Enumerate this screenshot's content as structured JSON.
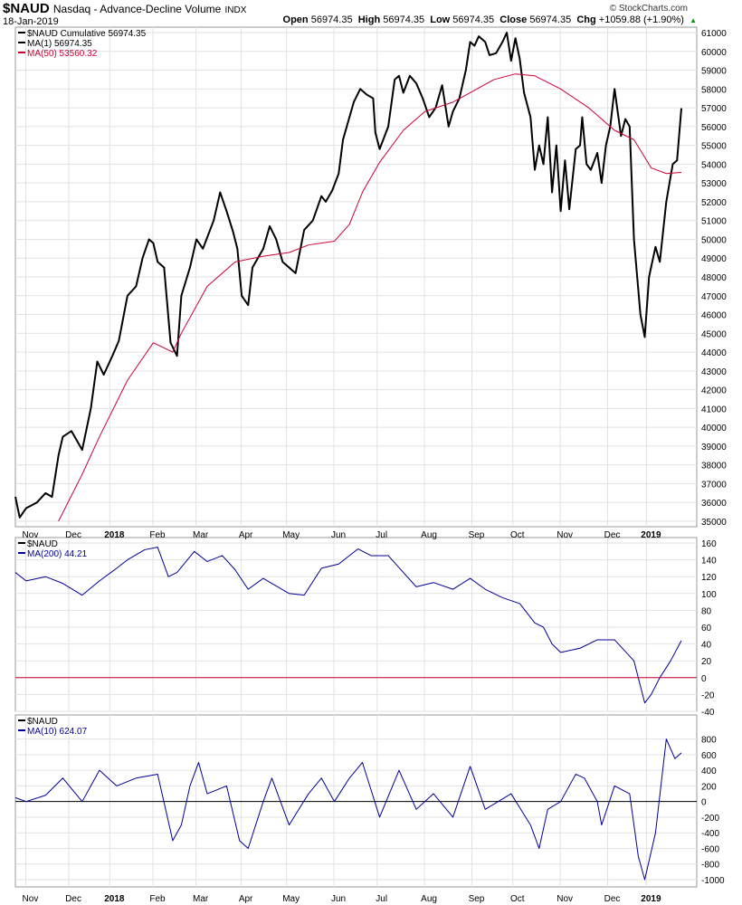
{
  "header": {
    "symbol": "$NAUD",
    "name": "Nasdaq - Advance-Decline Volume",
    "exchange": "INDX",
    "date": "18-Jan-2019",
    "watermark": "© StockCharts.com",
    "ohlc": [
      {
        "k": "Open",
        "v": "56974.35"
      },
      {
        "k": "High",
        "v": "56974.35"
      },
      {
        "k": "Low",
        "v": "56974.35"
      },
      {
        "k": "Close",
        "v": "56974.35"
      },
      {
        "k": "Chg",
        "v": "+1059.88 (+1.90%)"
      }
    ]
  },
  "chart_data": [
    {
      "type": "line",
      "title": "$NAUD Cumulative",
      "legend": [
        "$NAUD Cumulative 56974.35",
        "MA(1) 56974.35",
        "MA(50) 53560.32"
      ],
      "ylim": [
        35000,
        61000
      ],
      "yticks": [
        35000,
        36000,
        37000,
        38000,
        39000,
        40000,
        41000,
        42000,
        43000,
        44000,
        45000,
        46000,
        47000,
        48000,
        49000,
        50000,
        51000,
        52000,
        53000,
        54000,
        55000,
        56000,
        57000,
        58000,
        59000,
        60000,
        61000
      ],
      "series": [
        {
          "name": "MA(1)",
          "color": "#000000",
          "points": [
            [
              0,
              36300
            ],
            [
              2,
              35200
            ],
            [
              5,
              35700
            ],
            [
              10,
              36000
            ],
            [
              14,
              36500
            ],
            [
              17,
              36300
            ],
            [
              20,
              38500
            ],
            [
              22,
              39500
            ],
            [
              26,
              39800
            ],
            [
              31,
              38800
            ],
            [
              35,
              41000
            ],
            [
              38,
              43500
            ],
            [
              41,
              42800
            ],
            [
              45,
              43800
            ],
            [
              48,
              44600
            ],
            [
              52,
              47000
            ],
            [
              56,
              47500
            ],
            [
              59,
              49000
            ],
            [
              62,
              50000
            ],
            [
              64,
              49800
            ],
            [
              66,
              48800
            ],
            [
              69,
              48500
            ],
            [
              72,
              44500
            ],
            [
              75,
              43800
            ],
            [
              77,
              47000
            ],
            [
              81,
              48500
            ],
            [
              84,
              50000
            ],
            [
              87,
              49500
            ],
            [
              92,
              51000
            ],
            [
              95,
              52500
            ],
            [
              98,
              51500
            ],
            [
              101,
              50400
            ],
            [
              103,
              49500
            ],
            [
              105,
              47000
            ],
            [
              108,
              46500
            ],
            [
              110,
              48500
            ],
            [
              115,
              49500
            ],
            [
              118,
              50700
            ],
            [
              121,
              50000
            ],
            [
              124,
              48800
            ],
            [
              127,
              48500
            ],
            [
              130,
              48200
            ],
            [
              134,
              50500
            ],
            [
              138,
              51000
            ],
            [
              142,
              52300
            ],
            [
              144,
              52000
            ],
            [
              147,
              52600
            ],
            [
              150,
              53500
            ],
            [
              152,
              55300
            ],
            [
              157,
              57300
            ],
            [
              160,
              58000
            ],
            [
              163,
              57700
            ],
            [
              166,
              57500
            ],
            [
              167,
              55700
            ],
            [
              169,
              54800
            ],
            [
              173,
              56000
            ],
            [
              176,
              58500
            ],
            [
              178,
              58700
            ],
            [
              180,
              57800
            ],
            [
              183,
              58700
            ],
            [
              186,
              58300
            ],
            [
              189,
              57500
            ],
            [
              192,
              56500
            ],
            [
              195,
              57000
            ],
            [
              198,
              58200
            ],
            [
              201,
              56000
            ],
            [
              203,
              56800
            ],
            [
              206,
              57500
            ],
            [
              209,
              59000
            ],
            [
              211,
              60500
            ],
            [
              213,
              60300
            ],
            [
              215,
              60800
            ],
            [
              218,
              60500
            ],
            [
              220,
              59800
            ],
            [
              223,
              59900
            ],
            [
              226,
              60500
            ],
            [
              228,
              61000
            ],
            [
              230,
              59500
            ],
            [
              232,
              60700
            ],
            [
              234,
              59600
            ],
            [
              236,
              57800
            ],
            [
              239,
              56500
            ],
            [
              241,
              53700
            ],
            [
              243,
              55000
            ],
            [
              245,
              54000
            ],
            [
              247,
              56500
            ],
            [
              249,
              52500
            ],
            [
              251,
              55000
            ],
            [
              253,
              51500
            ],
            [
              255,
              54200
            ],
            [
              257,
              51600
            ],
            [
              260,
              54800
            ],
            [
              262,
              55000
            ],
            [
              263,
              56500
            ],
            [
              265,
              54000
            ],
            [
              267,
              53700
            ],
            [
              270,
              54600
            ],
            [
              272,
              53000
            ],
            [
              274,
              55000
            ],
            [
              276,
              56000
            ],
            [
              278,
              58000
            ],
            [
              281,
              55500
            ],
            [
              283,
              56400
            ],
            [
              285,
              56000
            ],
            [
              287,
              50000
            ],
            [
              290,
              46000
            ],
            [
              292,
              44800
            ],
            [
              294,
              48000
            ],
            [
              297,
              49600
            ],
            [
              299,
              48800
            ],
            [
              302,
              52000
            ],
            [
              305,
              54000
            ],
            [
              307,
              54200
            ],
            [
              309,
              56974
            ]
          ]
        },
        {
          "name": "MA(50)",
          "color": "#cc0033",
          "points": [
            [
              20,
              35000
            ],
            [
              31,
              37500
            ],
            [
              39,
              39500
            ],
            [
              52,
              42500
            ],
            [
              64,
              44500
            ],
            [
              73,
              44000
            ],
            [
              77,
              45000
            ],
            [
              89,
              47500
            ],
            [
              102,
              48800
            ],
            [
              115,
              49100
            ],
            [
              127,
              49300
            ],
            [
              136,
              49700
            ],
            [
              148,
              49900
            ],
            [
              155,
              50800
            ],
            [
              161,
              52500
            ],
            [
              169,
              54100
            ],
            [
              180,
              55800
            ],
            [
              190,
              56800
            ],
            [
              203,
              57300
            ],
            [
              211,
              57800
            ],
            [
              222,
              58500
            ],
            [
              232,
              58800
            ],
            [
              241,
              58700
            ],
            [
              253,
              58000
            ],
            [
              266,
              57000
            ],
            [
              278,
              55800
            ],
            [
              287,
              55300
            ],
            [
              295,
              53800
            ],
            [
              302,
              53500
            ],
            [
              309,
              53560
            ]
          ]
        }
      ]
    },
    {
      "type": "line",
      "legend": [
        "$NAUD",
        "MA(200) 44.21"
      ],
      "ylim": [
        -40,
        160
      ],
      "yticks": [
        -40,
        -20,
        0,
        20,
        40,
        60,
        80,
        100,
        120,
        140,
        160
      ],
      "reference": 0,
      "series": [
        {
          "name": "MA(200)",
          "color": "#000099",
          "points": [
            [
              0,
              125
            ],
            [
              5,
              115
            ],
            [
              14,
              120
            ],
            [
              22,
              112
            ],
            [
              31,
              98
            ],
            [
              39,
              115
            ],
            [
              47,
              130
            ],
            [
              52,
              140
            ],
            [
              60,
              152
            ],
            [
              66,
              155
            ],
            [
              71,
              120
            ],
            [
              75,
              125
            ],
            [
              83,
              150
            ],
            [
              89,
              138
            ],
            [
              96,
              145
            ],
            [
              102,
              128
            ],
            [
              108,
              105
            ],
            [
              115,
              118
            ],
            [
              119,
              112
            ],
            [
              127,
              100
            ],
            [
              134,
              98
            ],
            [
              142,
              130
            ],
            [
              150,
              135
            ],
            [
              159,
              153
            ],
            [
              165,
              145
            ],
            [
              173,
              145
            ],
            [
              180,
              125
            ],
            [
              186,
              108
            ],
            [
              194,
              113
            ],
            [
              203,
              105
            ],
            [
              211,
              118
            ],
            [
              218,
              105
            ],
            [
              226,
              95
            ],
            [
              234,
              88
            ],
            [
              241,
              65
            ],
            [
              245,
              60
            ],
            [
              249,
              40
            ],
            [
              253,
              30
            ],
            [
              262,
              35
            ],
            [
              270,
              45
            ],
            [
              278,
              45
            ],
            [
              287,
              20
            ],
            [
              292,
              -30
            ],
            [
              295,
              -20
            ],
            [
              299,
              0
            ],
            [
              304,
              20
            ],
            [
              309,
              44
            ]
          ]
        }
      ]
    },
    {
      "type": "line",
      "legend": [
        "$NAUD",
        "MA(10) 624.07"
      ],
      "ylim": [
        -1000,
        900
      ],
      "yticks": [
        -1000,
        -800,
        -600,
        -400,
        -200,
        0,
        200,
        400,
        600,
        800
      ],
      "reference": 0,
      "series": [
        {
          "name": "MA(10)",
          "color": "#000099",
          "points": [
            [
              0,
              50
            ],
            [
              5,
              0
            ],
            [
              14,
              80
            ],
            [
              22,
              300
            ],
            [
              31,
              0
            ],
            [
              39,
              400
            ],
            [
              47,
              200
            ],
            [
              56,
              300
            ],
            [
              66,
              350
            ],
            [
              73,
              -500
            ],
            [
              77,
              -300
            ],
            [
              81,
              200
            ],
            [
              85,
              500
            ],
            [
              89,
              100
            ],
            [
              98,
              200
            ],
            [
              104,
              -500
            ],
            [
              108,
              -600
            ],
            [
              115,
              0
            ],
            [
              119,
              300
            ],
            [
              127,
              -300
            ],
            [
              136,
              100
            ],
            [
              142,
              300
            ],
            [
              148,
              0
            ],
            [
              155,
              300
            ],
            [
              161,
              500
            ],
            [
              169,
              -200
            ],
            [
              178,
              400
            ],
            [
              186,
              -100
            ],
            [
              194,
              100
            ],
            [
              203,
              -200
            ],
            [
              211,
              450
            ],
            [
              218,
              -100
            ],
            [
              224,
              0
            ],
            [
              230,
              100
            ],
            [
              239,
              -300
            ],
            [
              243,
              -600
            ],
            [
              247,
              -100
            ],
            [
              253,
              0
            ],
            [
              260,
              350
            ],
            [
              264,
              300
            ],
            [
              270,
              0
            ],
            [
              272,
              -300
            ],
            [
              278,
              200
            ],
            [
              285,
              100
            ],
            [
              289,
              -700
            ],
            [
              292,
              -1000
            ],
            [
              297,
              -400
            ],
            [
              302,
              800
            ],
            [
              306,
              550
            ],
            [
              309,
              624
            ]
          ]
        }
      ]
    }
  ],
  "xaxis": {
    "days": 309,
    "ticks": [
      {
        "d": 9,
        "l": "Nov"
      },
      {
        "d": 29,
        "l": "Dec"
      },
      {
        "d": 48,
        "l": "2018"
      },
      {
        "d": 68,
        "l": "Feb"
      },
      {
        "d": 88,
        "l": "Mar"
      },
      {
        "d": 109,
        "l": "Apr"
      },
      {
        "d": 130,
        "l": "May"
      },
      {
        "d": 152,
        "l": "Jun"
      },
      {
        "d": 172,
        "l": "Jul"
      },
      {
        "d": 194,
        "l": "Aug"
      },
      {
        "d": 216,
        "l": "Sep"
      },
      {
        "d": 235,
        "l": "Oct"
      },
      {
        "d": 257,
        "l": "Nov"
      },
      {
        "d": 279,
        "l": "Dec"
      },
      {
        "d": 297,
        "l": "2019"
      }
    ]
  }
}
